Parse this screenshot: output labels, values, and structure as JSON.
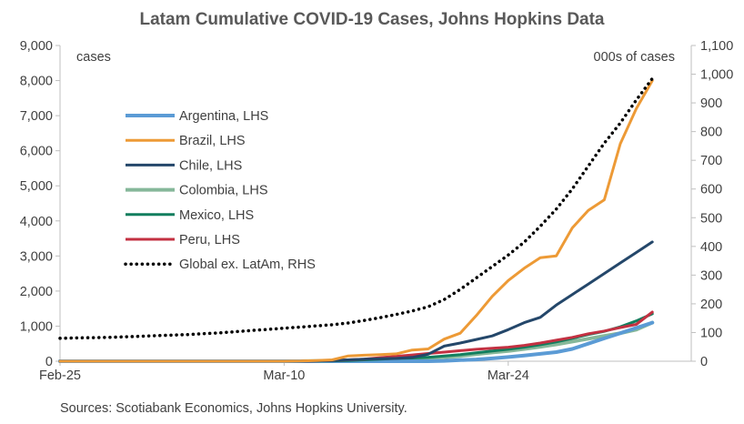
{
  "chart_data": {
    "type": "line",
    "title": "Latam Cumulative COVID-19 Cases, Johns Hopkins Data",
    "left_axis_unit": "cases",
    "right_axis_unit": "000s of cases",
    "source": "Sources: Scotiabank Economics, Johns Hopkins University.",
    "x_tick_labels": [
      "Feb-25",
      "Mar-10",
      "Mar-24"
    ],
    "x_tick_days": [
      0,
      14,
      28
    ],
    "y_left": {
      "min": 0,
      "max": 9000,
      "ticks": [
        "0",
        "1,000",
        "2,000",
        "3,000",
        "4,000",
        "5,000",
        "6,000",
        "7,000",
        "8,000",
        "9,000"
      ]
    },
    "y_right": {
      "min": 0,
      "max": 1100,
      "ticks": [
        "0",
        "100",
        "200",
        "300",
        "400",
        "500",
        "600",
        "700",
        "800",
        "900",
        "1,000",
        "1,100"
      ]
    },
    "grid": false,
    "legend_position": "left",
    "x_dates": [
      "Feb-25",
      "Feb-26",
      "Feb-27",
      "Feb-28",
      "Feb-29",
      "Mar-01",
      "Mar-02",
      "Mar-03",
      "Mar-04",
      "Mar-05",
      "Mar-06",
      "Mar-07",
      "Mar-08",
      "Mar-09",
      "Mar-10",
      "Mar-11",
      "Mar-12",
      "Mar-13",
      "Mar-14",
      "Mar-15",
      "Mar-16",
      "Mar-17",
      "Mar-18",
      "Mar-19",
      "Mar-20",
      "Mar-21",
      "Mar-22",
      "Mar-23",
      "Mar-24",
      "Mar-25",
      "Mar-26",
      "Mar-27",
      "Mar-28",
      "Mar-29",
      "Mar-30",
      "Mar-31",
      "Apr-01",
      "Apr-02"
    ],
    "series": [
      {
        "name": "Argentina, LHS",
        "axis": "left",
        "color": "#5b9bd5",
        "dash": "solid",
        "width": 4,
        "values": [
          0,
          0,
          0,
          0,
          0,
          0,
          0,
          0,
          0,
          0,
          0,
          0,
          0,
          0,
          0,
          0,
          0,
          0,
          0,
          0,
          0,
          0,
          0,
          0,
          10,
          30,
          50,
          80,
          120,
          160,
          210,
          260,
          350,
          500,
          650,
          800,
          950,
          1100
        ]
      },
      {
        "name": "Brazil, LHS",
        "axis": "left",
        "color": "#ed9a36",
        "dash": "solid",
        "width": 3,
        "values": [
          0,
          0,
          0,
          0,
          0,
          0,
          0,
          0,
          0,
          0,
          0,
          0,
          0,
          0,
          0,
          5,
          20,
          40,
          150,
          170,
          190,
          210,
          320,
          350,
          630,
          800,
          1300,
          1850,
          2300,
          2650,
          2950,
          3000,
          3800,
          4300,
          4600,
          6200,
          7200,
          8000
        ]
      },
      {
        "name": "Chile, LHS",
        "axis": "left",
        "color": "#24476a",
        "dash": "solid",
        "width": 3,
        "values": [
          0,
          0,
          0,
          0,
          0,
          0,
          0,
          0,
          0,
          0,
          0,
          0,
          0,
          0,
          0,
          0,
          10,
          20,
          40,
          60,
          70,
          80,
          110,
          200,
          430,
          520,
          620,
          720,
          900,
          1100,
          1250,
          1600,
          1900,
          2200,
          2500,
          2800,
          3100,
          3400
        ]
      },
      {
        "name": "Colombia, LHS",
        "axis": "left",
        "color": "#86b89a",
        "dash": "solid",
        "width": 4,
        "values": [
          0,
          0,
          0,
          0,
          0,
          0,
          0,
          0,
          0,
          0,
          0,
          0,
          0,
          0,
          0,
          0,
          5,
          10,
          20,
          30,
          40,
          60,
          80,
          100,
          110,
          150,
          200,
          250,
          290,
          350,
          410,
          480,
          560,
          640,
          720,
          800,
          900,
          1100
        ]
      },
      {
        "name": "Mexico, LHS",
        "axis": "left",
        "color": "#127e5e",
        "dash": "solid",
        "width": 3,
        "values": [
          0,
          0,
          0,
          0,
          0,
          0,
          0,
          0,
          0,
          0,
          0,
          0,
          0,
          0,
          0,
          0,
          5,
          10,
          20,
          40,
          60,
          80,
          90,
          110,
          150,
          190,
          240,
          290,
          340,
          400,
          470,
          550,
          650,
          760,
          850,
          980,
          1150,
          1350
        ]
      },
      {
        "name": "Peru, LHS",
        "axis": "left",
        "color": "#c33142",
        "dash": "solid",
        "width": 3,
        "values": [
          0,
          0,
          0,
          0,
          0,
          0,
          0,
          0,
          0,
          0,
          0,
          0,
          0,
          0,
          0,
          0,
          10,
          20,
          40,
          60,
          100,
          140,
          180,
          220,
          260,
          300,
          340,
          370,
          400,
          450,
          520,
          600,
          680,
          780,
          860,
          960,
          1050,
          1400
        ]
      },
      {
        "name": "Global ex. LatAm, RHS",
        "axis": "right",
        "color": "#000000",
        "dash": "dotted",
        "width": 3.5,
        "values": [
          80,
          81,
          82,
          83,
          85,
          87,
          89,
          91,
          93,
          96,
          99,
          103,
          107,
          111,
          115,
          119,
          123,
          127,
          133,
          142,
          152,
          163,
          175,
          190,
          215,
          250,
          290,
          330,
          370,
          415,
          470,
          530,
          600,
          680,
          760,
          830,
          910,
          985
        ]
      }
    ]
  }
}
